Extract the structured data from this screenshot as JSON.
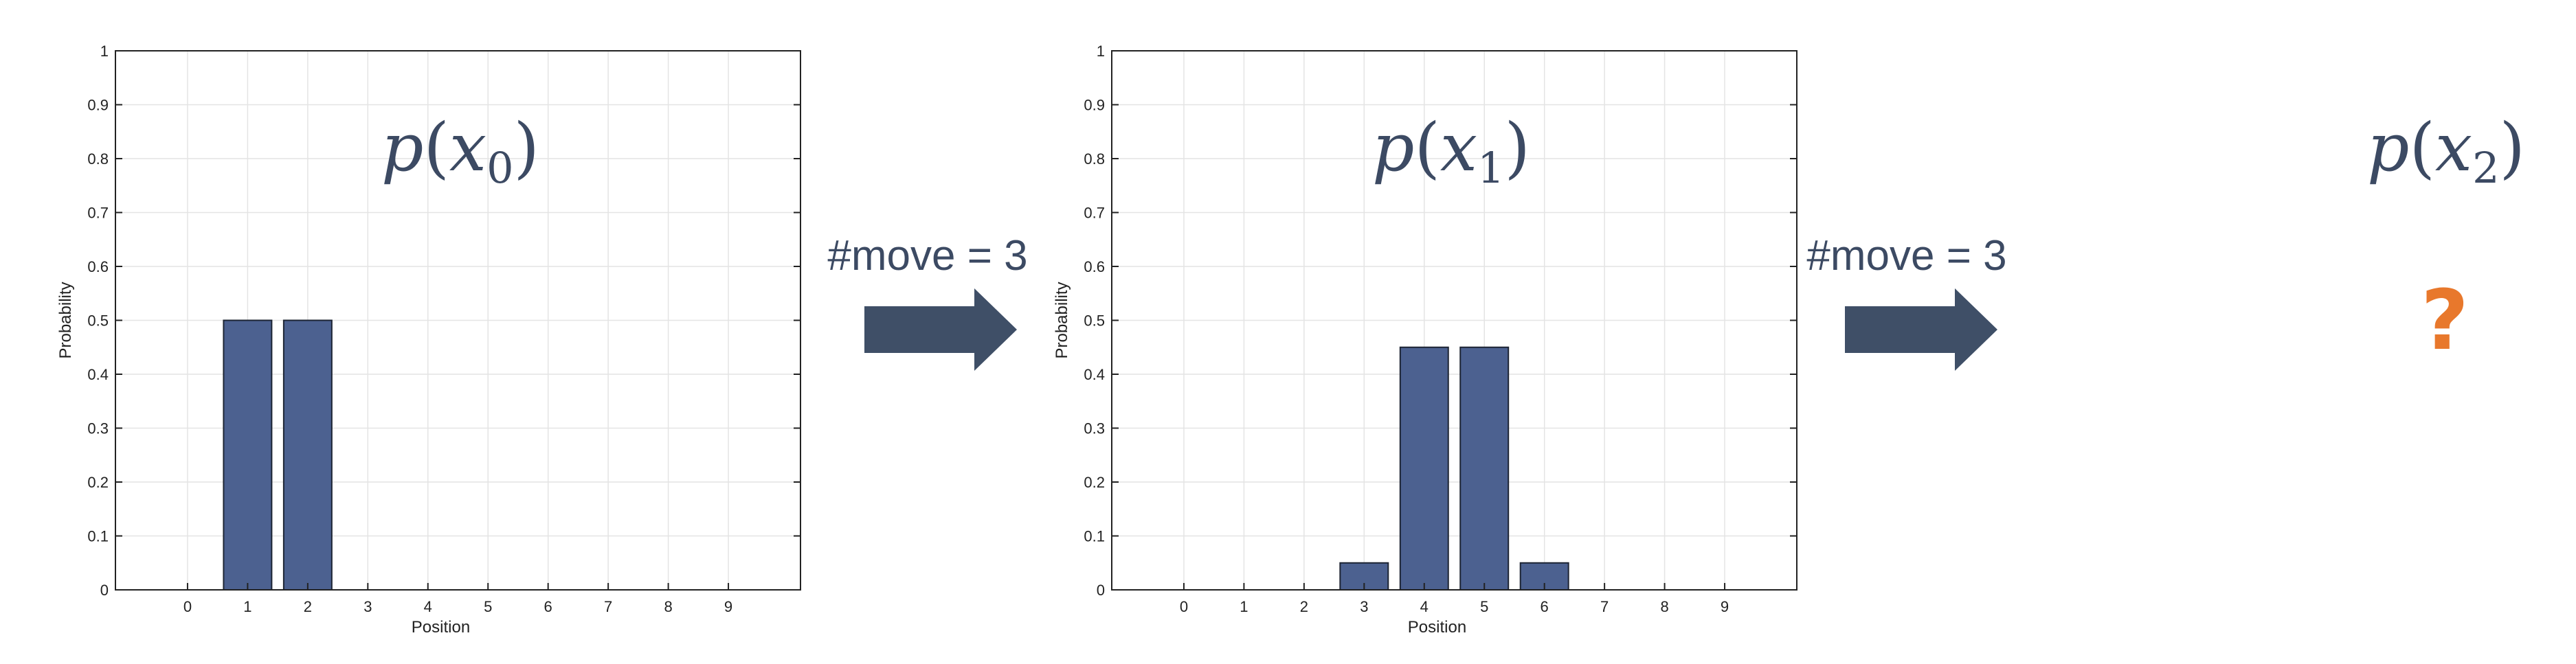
{
  "colors": {
    "bar_fill": "#4c6190",
    "bar_edge": "#1d2433",
    "arrow": "#3f4f67",
    "text_dark": "#3c4a63",
    "question": "#e8782c",
    "grid": "#e4e4e4"
  },
  "steps": [
    {
      "label": "#move = 3"
    },
    {
      "label": "#move = 3"
    }
  ],
  "unknown": {
    "title": {
      "base": "p",
      "sub": "2"
    },
    "symbol": "?"
  },
  "chart_data": [
    {
      "type": "bar",
      "title": {
        "base": "p",
        "sub": "0"
      },
      "categories": [
        "0",
        "1",
        "2",
        "3",
        "4",
        "5",
        "6",
        "7",
        "8",
        "9"
      ],
      "values": [
        0,
        0.5,
        0.5,
        0,
        0,
        0,
        0,
        0,
        0,
        0
      ],
      "xlabel": "Position",
      "ylabel": "Probability",
      "ylim": [
        0,
        1
      ],
      "yticks": [
        "0",
        "0.1",
        "0.2",
        "0.3",
        "0.4",
        "0.5",
        "0.6",
        "0.7",
        "0.8",
        "0.9",
        "1"
      ],
      "grid": true
    },
    {
      "type": "bar",
      "title": {
        "base": "p",
        "sub": "1"
      },
      "categories": [
        "0",
        "1",
        "2",
        "3",
        "4",
        "5",
        "6",
        "7",
        "8",
        "9"
      ],
      "values": [
        0,
        0,
        0,
        0.05,
        0.45,
        0.45,
        0.05,
        0,
        0,
        0
      ],
      "xlabel": "Position",
      "ylabel": "Probability",
      "ylim": [
        0,
        1
      ],
      "yticks": [
        "0",
        "0.1",
        "0.2",
        "0.3",
        "0.4",
        "0.5",
        "0.6",
        "0.7",
        "0.8",
        "0.9",
        "1"
      ],
      "grid": true
    }
  ]
}
